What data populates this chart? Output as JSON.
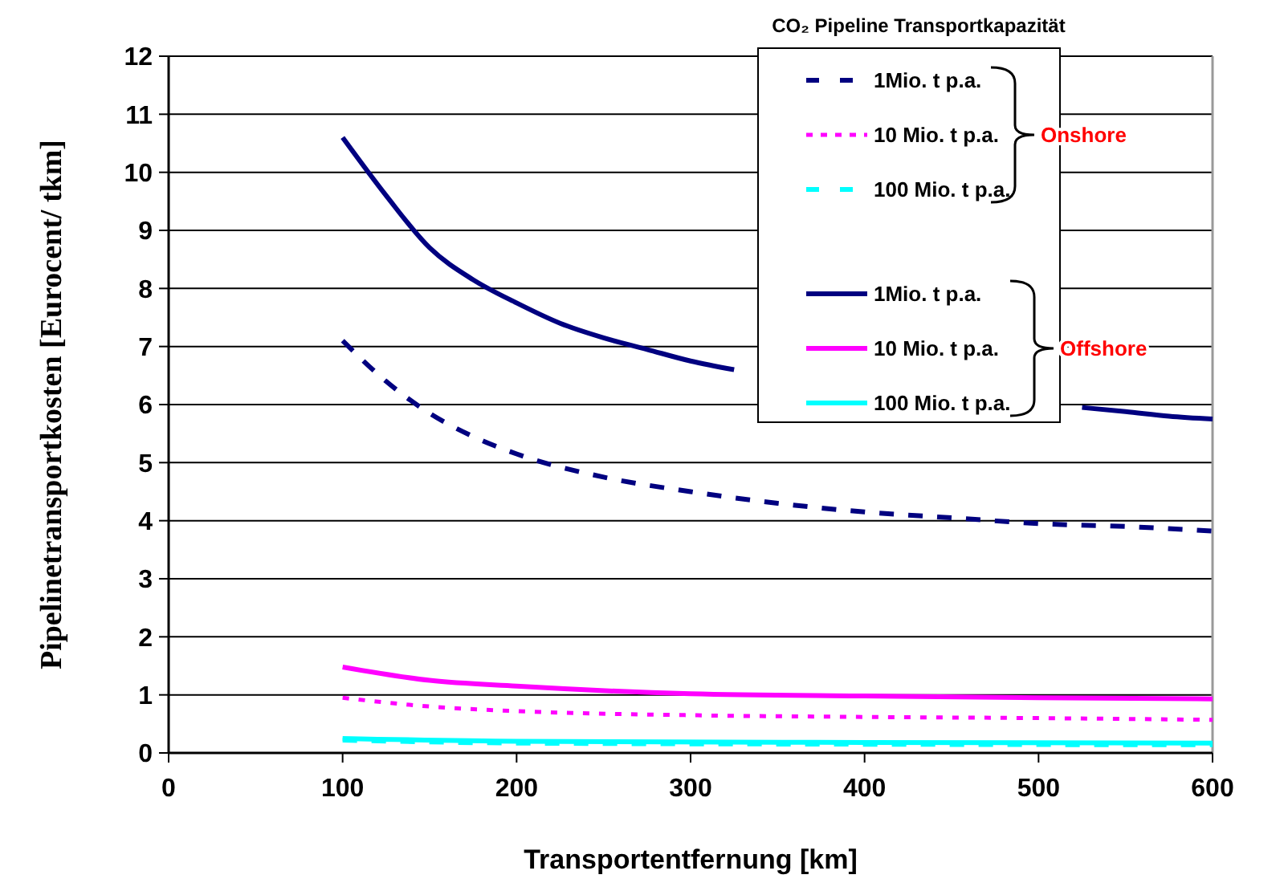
{
  "chart_data": {
    "type": "line",
    "xlabel": "Transportentfernung [km]",
    "ylabel": "Pipelinetransportkosten [Eurocent/ tkm]",
    "legend_title": "CO₂ Pipeline Transportkapazität",
    "annotations": [
      "Onshore",
      "Offshore"
    ],
    "xlim": [
      0,
      600
    ],
    "xticks": [
      0,
      100,
      200,
      300,
      400,
      500,
      600
    ],
    "ylim": [
      0,
      12
    ],
    "yticks": [
      0,
      1,
      2,
      3,
      4,
      5,
      6,
      7,
      8,
      9,
      10,
      11,
      12
    ],
    "grid": "y",
    "legend": "top right",
    "marker": "none",
    "series": [
      {
        "name": "1Mio. t p.a.",
        "color": "#000080",
        "line_style": "dashed",
        "x": [
          100,
          125,
          150,
          175,
          200,
          250,
          300,
          350,
          400,
          450,
          500,
          550,
          600
        ],
        "values": [
          7.1,
          6.4,
          5.85,
          5.45,
          5.15,
          4.75,
          4.5,
          4.3,
          4.15,
          4.05,
          3.95,
          3.9,
          3.82
        ]
      },
      {
        "name": "10 Mio. t p.a.",
        "color": "#ff00ff",
        "line_style": "dotted",
        "x": [
          100,
          150,
          200,
          300,
          400,
          500,
          600
        ],
        "values": [
          0.95,
          0.8,
          0.72,
          0.65,
          0.62,
          0.6,
          0.57
        ]
      },
      {
        "name": "100 Mio. t p.a.",
        "color": "#00ffff",
        "line_style": "dashed",
        "x": [
          100,
          200,
          400,
          600
        ],
        "values": [
          0.22,
          0.17,
          0.15,
          0.14
        ]
      },
      {
        "name": "1Mio. t p.a.",
        "color": "#000080",
        "line_style": "solid",
        "x": [
          100,
          125,
          150,
          175,
          200,
          225,
          250,
          275,
          300,
          325,
          350,
          400,
          450,
          500,
          525,
          550,
          575,
          600
        ],
        "values": [
          10.6,
          9.6,
          8.7,
          8.15,
          7.75,
          7.4,
          7.15,
          6.95,
          6.75,
          6.6,
          null,
          null,
          null,
          null,
          5.95,
          5.88,
          5.8,
          5.75
        ]
      },
      {
        "name": "10 Mio. t p.a.",
        "color": "#ff00ff",
        "line_style": "solid",
        "x": [
          100,
          150,
          200,
          300,
          400,
          500,
          600
        ],
        "values": [
          1.48,
          1.25,
          1.15,
          1.02,
          0.98,
          0.95,
          0.93
        ]
      },
      {
        "name": "100 Mio. t p.a.",
        "color": "#00ffff",
        "line_style": "solid",
        "x": [
          100,
          200,
          400,
          600
        ],
        "values": [
          0.25,
          0.2,
          0.18,
          0.17
        ]
      }
    ]
  }
}
